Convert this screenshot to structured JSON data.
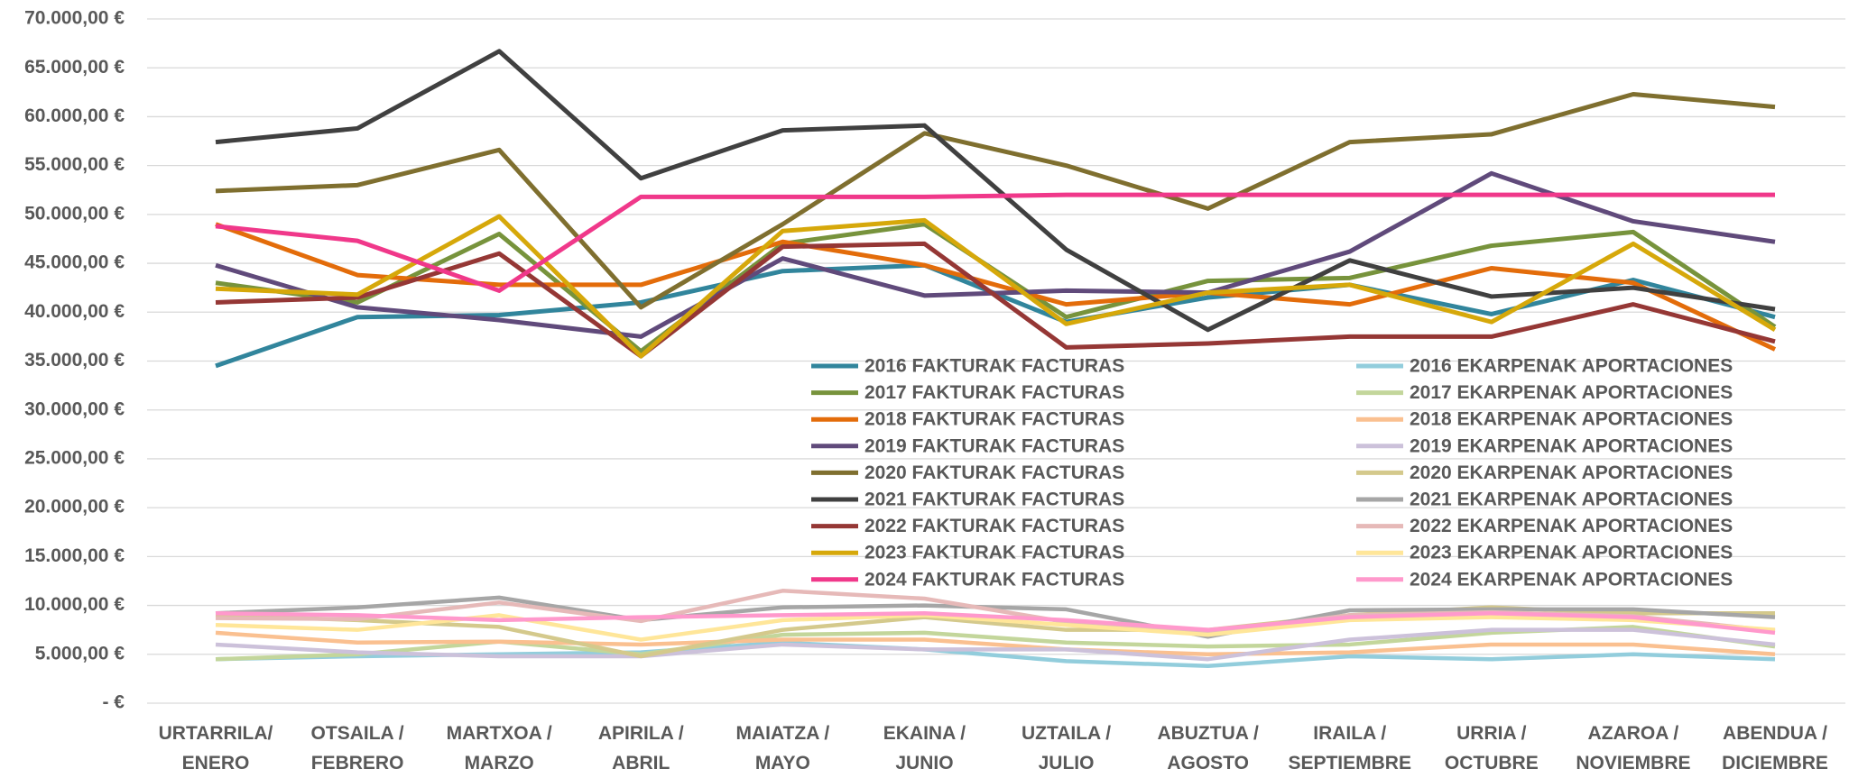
{
  "chart_data": {
    "type": "line",
    "categories": [
      "URTARRILA/\nENERO",
      "OTSAILA /\nFEBRERO",
      "MARTXOA /\nMARZO",
      "APIRILA /\nABRIL",
      "MAIATZA /\nMAYO",
      "EKAINA /\nJUNIO",
      "UZTAILA /\nJULIO",
      "ABUZTUA /\nAGOSTO",
      "IRAILA /\nSEPTIEMBRE",
      "URRIA /\nOCTUBRE",
      "AZAROA /\nNOVIEMBRE",
      "ABENDUA /\nDICIEMBRE"
    ],
    "ylim": [
      0,
      70000
    ],
    "yticks": [
      {
        "value": 0,
        "label": "-   €"
      },
      {
        "value": 5000,
        "label": "5.000,00 €"
      },
      {
        "value": 10000,
        "label": "10.000,00 €"
      },
      {
        "value": 15000,
        "label": "15.000,00 €"
      },
      {
        "value": 20000,
        "label": "20.000,00 €"
      },
      {
        "value": 25000,
        "label": "25.000,00 €"
      },
      {
        "value": 30000,
        "label": "30.000,00 €"
      },
      {
        "value": 35000,
        "label": "35.000,00 €"
      },
      {
        "value": 40000,
        "label": "40.000,00 €"
      },
      {
        "value": 45000,
        "label": "45.000,00 €"
      },
      {
        "value": 50000,
        "label": "50.000,00 €"
      },
      {
        "value": 55000,
        "label": "55.000,00 €"
      },
      {
        "value": 60000,
        "label": "60.000,00 €"
      },
      {
        "value": 65000,
        "label": "65.000,00 €"
      },
      {
        "value": 70000,
        "label": "70.000,00 €"
      }
    ],
    "grid": true,
    "series": [
      {
        "name": "2016 FAKTURAK FACTURAS",
        "color": "#31859c",
        "values": [
          34500,
          39500,
          39700,
          41000,
          44200,
          44800,
          39000,
          41500,
          42800,
          39800,
          43300,
          39500
        ]
      },
      {
        "name": "2017 FAKTURAK FACTURAS",
        "color": "#77933c",
        "values": [
          43000,
          41000,
          48000,
          36000,
          47000,
          49000,
          39500,
          43200,
          43500,
          46800,
          48200,
          38500
        ]
      },
      {
        "name": "2018 FAKTURAK FACTURAS",
        "color": "#e36c0a",
        "values": [
          49000,
          43800,
          42800,
          42800,
          47200,
          44800,
          40800,
          42000,
          40800,
          44500,
          43000,
          36200
        ]
      },
      {
        "name": "2019 FAKTURAK FACTURAS",
        "color": "#604a7b",
        "values": [
          44800,
          40500,
          39200,
          37500,
          45500,
          41700,
          42200,
          42000,
          46200,
          54200,
          49300,
          47200
        ]
      },
      {
        "name": "2020 FAKTURAK FACTURAS",
        "color": "#7f6f2f",
        "values": [
          52400,
          53000,
          56600,
          40500,
          49000,
          58300,
          55000,
          50600,
          57400,
          58200,
          62300,
          61000
        ]
      },
      {
        "name": "2021 FAKTURAK FACTURAS",
        "color": "#404040",
        "values": [
          57400,
          58800,
          66700,
          53700,
          58600,
          59100,
          46400,
          38200,
          45300,
          41600,
          42500,
          40300
        ]
      },
      {
        "name": "2022 FAKTURAK FACTURAS",
        "color": "#953735",
        "values": [
          41000,
          41500,
          46000,
          35500,
          46700,
          47000,
          36400,
          36800,
          37500,
          37500,
          40800,
          37000
        ]
      },
      {
        "name": "2023 FAKTURAK FACTURAS",
        "color": "#d6a80a",
        "values": [
          42400,
          41800,
          49800,
          35500,
          48300,
          49400,
          38800,
          42000,
          42800,
          39000,
          47000,
          38200
        ]
      },
      {
        "name": "2024 FAKTURAK FACTURAS",
        "color": "#f0388a",
        "values": [
          48800,
          47300,
          42200,
          51800,
          51800,
          51800,
          52000,
          52000,
          52000,
          52000,
          52000,
          52000
        ]
      },
      {
        "name": "2016 EKARPENAK APORTACIONES",
        "color": "#92cddc",
        "values": [
          4500,
          4800,
          5000,
          5200,
          6200,
          5500,
          4300,
          3800,
          4800,
          4500,
          5000,
          4500
        ]
      },
      {
        "name": "2017 EKARPENAK APORTACIONES",
        "color": "#c3d69b",
        "values": [
          4500,
          5000,
          6300,
          5000,
          7000,
          7200,
          6200,
          5800,
          6000,
          7200,
          7800,
          5800
        ]
      },
      {
        "name": "2018 EKARPENAK APORTACIONES",
        "color": "#fac090",
        "values": [
          7200,
          6200,
          6300,
          6000,
          6500,
          6500,
          5500,
          5000,
          5200,
          6000,
          6000,
          5000
        ]
      },
      {
        "name": "2019 EKARPENAK APORTACIONES",
        "color": "#ccc1da",
        "values": [
          6000,
          5200,
          4800,
          4800,
          6000,
          5500,
          5500,
          4500,
          6500,
          7500,
          7500,
          6000
        ]
      },
      {
        "name": "2020 EKARPENAK APORTACIONES",
        "color": "#d4c98c",
        "values": [
          9000,
          8500,
          7800,
          4800,
          7500,
          8800,
          7500,
          7500,
          9000,
          9800,
          9200,
          9200
        ]
      },
      {
        "name": "2021 EKARPENAK APORTACIONES",
        "color": "#a6a6a6",
        "values": [
          9200,
          9800,
          10800,
          8500,
          9800,
          10000,
          9600,
          6800,
          9500,
          9600,
          9600,
          8800
        ]
      },
      {
        "name": "2022 EKARPENAK APORTACIONES",
        "color": "#e6b9b8",
        "values": [
          8700,
          8600,
          10300,
          8400,
          11500,
          10700,
          8300,
          7200,
          9000,
          9300,
          8900,
          7400
        ]
      },
      {
        "name": "2023 EKARPENAK APORTACIONES",
        "color": "#ffe699",
        "values": [
          8000,
          7500,
          9000,
          6500,
          8500,
          9000,
          8000,
          7000,
          8500,
          8800,
          8500,
          7500
        ]
      },
      {
        "name": "2024 EKARPENAK APORTACIONES",
        "color": "#ff99cc",
        "values": [
          9200,
          9000,
          8500,
          8800,
          9000,
          9200,
          8500,
          7500,
          8800,
          9200,
          8800,
          7200
        ]
      }
    ]
  }
}
